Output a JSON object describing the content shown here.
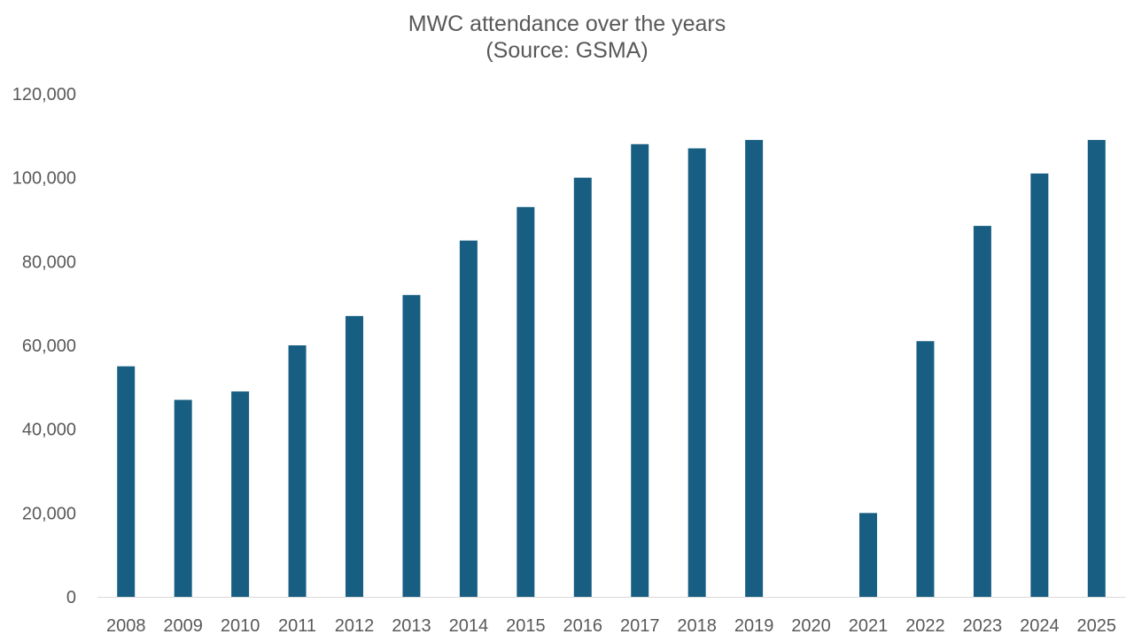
{
  "chart_data": {
    "type": "bar",
    "title": "MWC attendance over the years",
    "subtitle": "(Source: GSMA)",
    "xlabel": "",
    "ylabel": "",
    "categories": [
      "2008",
      "2009",
      "2010",
      "2011",
      "2012",
      "2013",
      "2014",
      "2015",
      "2016",
      "2017",
      "2018",
      "2019",
      "2020",
      "2021",
      "2022",
      "2023",
      "2024",
      "2025"
    ],
    "values": [
      55000,
      47000,
      49000,
      60000,
      67000,
      72000,
      85000,
      93000,
      100000,
      108000,
      107000,
      109000,
      0,
      20000,
      61000,
      88500,
      101000,
      109000
    ],
    "ylim": [
      0,
      120000
    ],
    "yticks": [
      0,
      20000,
      40000,
      60000,
      80000,
      100000,
      120000
    ],
    "ytick_labels": [
      "0",
      "20,000",
      "40,000",
      "60,000",
      "80,000",
      "100,000",
      "120,000"
    ],
    "grid": false,
    "legend": "none",
    "bar_color": "#175e82",
    "axis_color": "#d9d9d9",
    "text_color": "#595959"
  }
}
